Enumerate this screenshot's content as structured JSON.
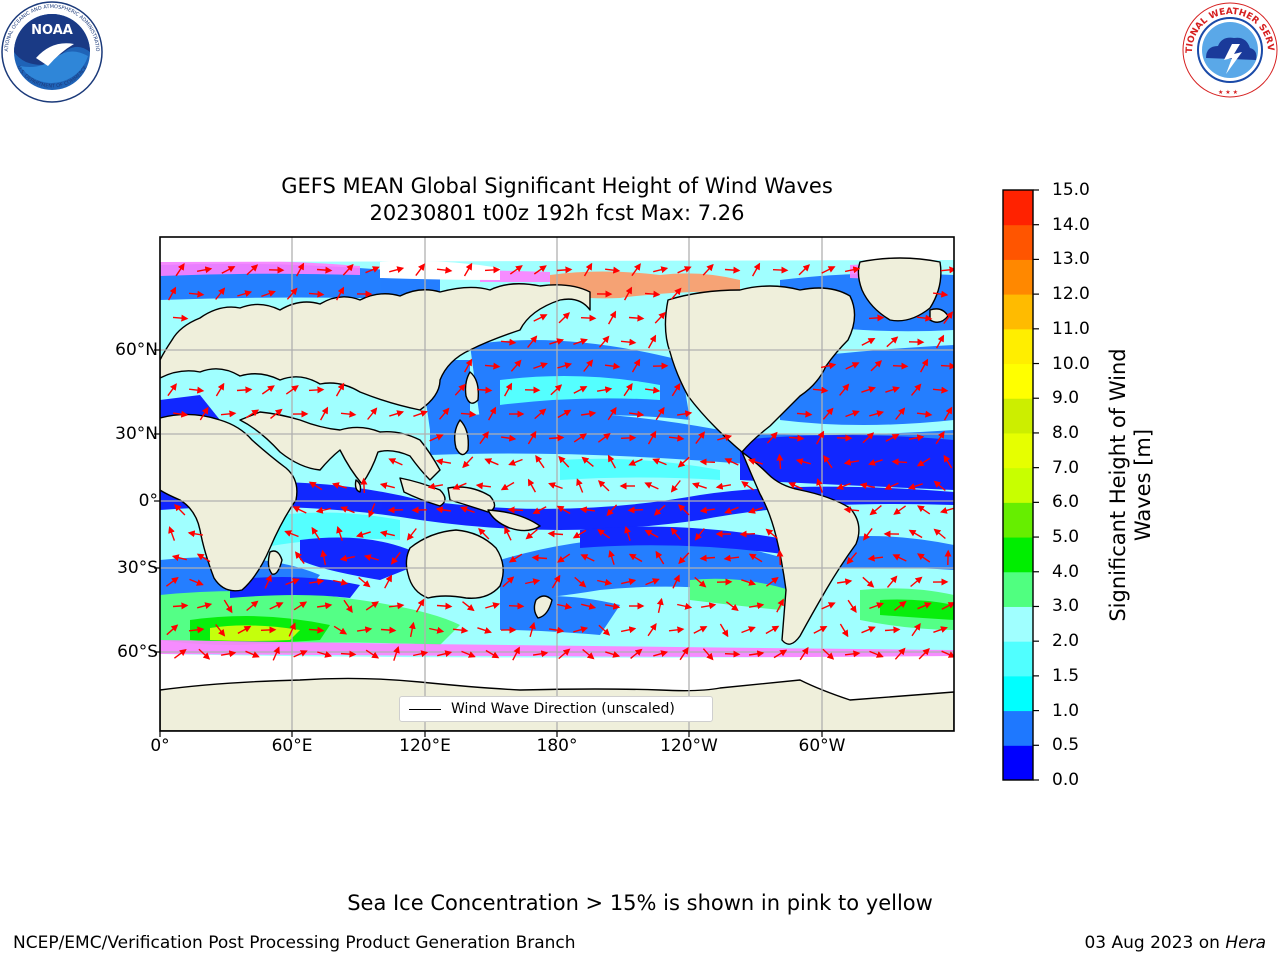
{
  "header": {
    "noaa_logo_text": "NOAA",
    "noaa_logo_ring_text": "NATIONAL OCEANIC AND ATMOSPHERIC ADMINISTRATION",
    "noaa_logo_ring_text_bottom": "U.S. DEPARTMENT OF COMMERCE",
    "nws_logo_ring_text": "NATIONAL WEATHER SERVICE"
  },
  "map": {
    "title_line1": "GEFS MEAN Global Significant Height of Wind Waves",
    "title_line2": "20230801 t00z 192h fcst   Max: 7.26",
    "lat_ticks": [
      "60°N",
      "30°N",
      "0°",
      "30°S",
      "60°S"
    ],
    "lon_ticks": [
      "0°",
      "60°E",
      "120°E",
      "180°",
      "120°W",
      "60°W"
    ],
    "legend_label": "Wind Wave Direction (unscaled)",
    "colors": {
      "land": "#efefdb",
      "ocean_deep": "#1414ff",
      "grid": "#b0b0b0",
      "arrow": "#ff0000"
    }
  },
  "colorbar": {
    "label": "Significant Height of Wind Waves [m]",
    "ticks": [
      "0.0",
      "0.5",
      "1.0",
      "1.5",
      "2.0",
      "3.0",
      "4.0",
      "5.0",
      "6.0",
      "7.0",
      "8.0",
      "9.0",
      "10.0",
      "11.0",
      "12.0",
      "13.0",
      "14.0",
      "15.0"
    ],
    "colors": [
      "#0000ff",
      "#1e78ff",
      "#00ffff",
      "#50ffff",
      "#a0ffff",
      "#50ff80",
      "#00ee00",
      "#66ee00",
      "#c8ff00",
      "#e6ff00",
      "#ccee00",
      "#ffff00",
      "#ffee00",
      "#ffbb00",
      "#ff8800",
      "#ff5500",
      "#ff2200"
    ]
  },
  "footer": {
    "ice_note": "Sea Ice Concentration > 15% is shown in pink to yellow",
    "left_text": "NCEP/EMC/Verification Post Processing Product Generation Branch",
    "date_text": "03 Aug 2023 on",
    "machine_text": "Hera"
  }
}
